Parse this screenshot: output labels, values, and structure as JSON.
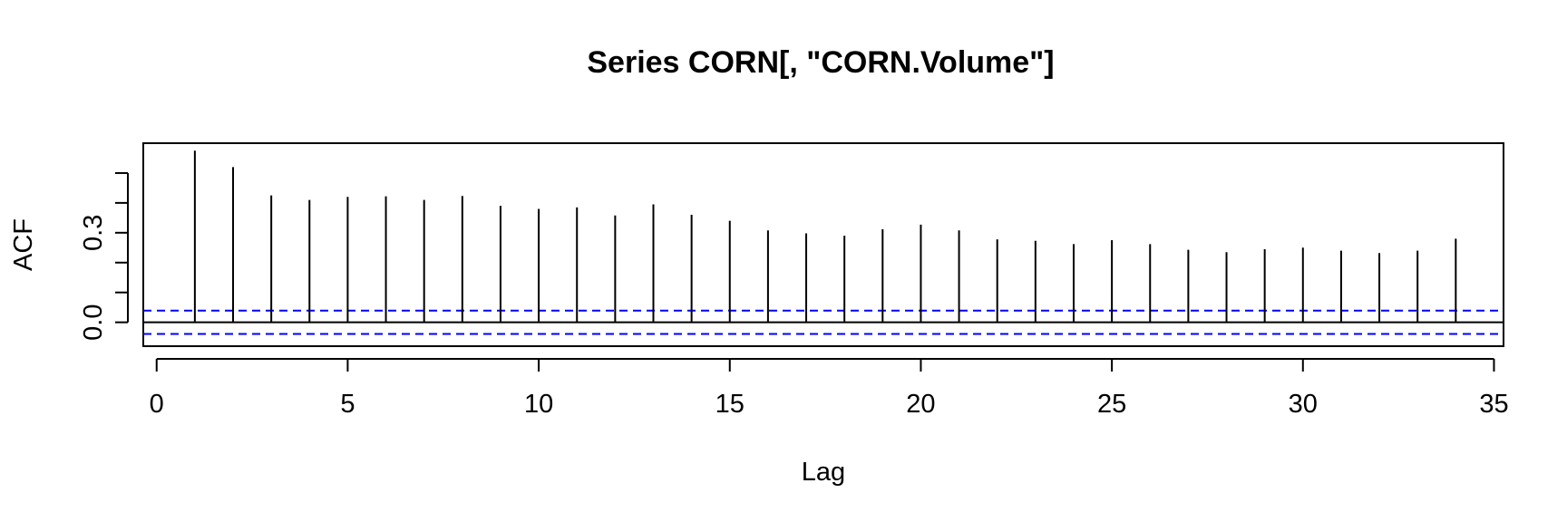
{
  "chart_data": {
    "type": "bar",
    "title": "Series  CORN[, \"CORN.Volume\"]",
    "xlabel": "Lag",
    "ylabel": "ACF",
    "xlim": [
      -0.35,
      35.25
    ],
    "ylim": [
      -0.08,
      0.6
    ],
    "x_ticks": [
      0,
      5,
      10,
      15,
      20,
      25,
      30,
      35
    ],
    "y_ticks": [
      0.0,
      0.1,
      0.2,
      0.3,
      0.4,
      0.5
    ],
    "y_tick_labels": [
      {
        "value": 0.0,
        "label": "0.0"
      },
      {
        "value": 0.3,
        "label": "0.3"
      }
    ],
    "lags": [
      1,
      2,
      3,
      4,
      5,
      6,
      7,
      8,
      9,
      10,
      11,
      12,
      13,
      14,
      15,
      16,
      17,
      18,
      19,
      20,
      21,
      22,
      23,
      24,
      25,
      26,
      27,
      28,
      29,
      30,
      31,
      32,
      33,
      34
    ],
    "acf": [
      0.575,
      0.52,
      0.425,
      0.41,
      0.42,
      0.422,
      0.41,
      0.423,
      0.39,
      0.38,
      0.385,
      0.358,
      0.395,
      0.36,
      0.34,
      0.308,
      0.298,
      0.29,
      0.312,
      0.327,
      0.308,
      0.278,
      0.273,
      0.262,
      0.275,
      0.262,
      0.243,
      0.235,
      0.245,
      0.25,
      0.24,
      0.232,
      0.24,
      0.28
    ],
    "confidence_bound": 0.039,
    "colors": {
      "stem": "#000000",
      "ci": "#0000ff",
      "zero_line": "#000000"
    }
  }
}
